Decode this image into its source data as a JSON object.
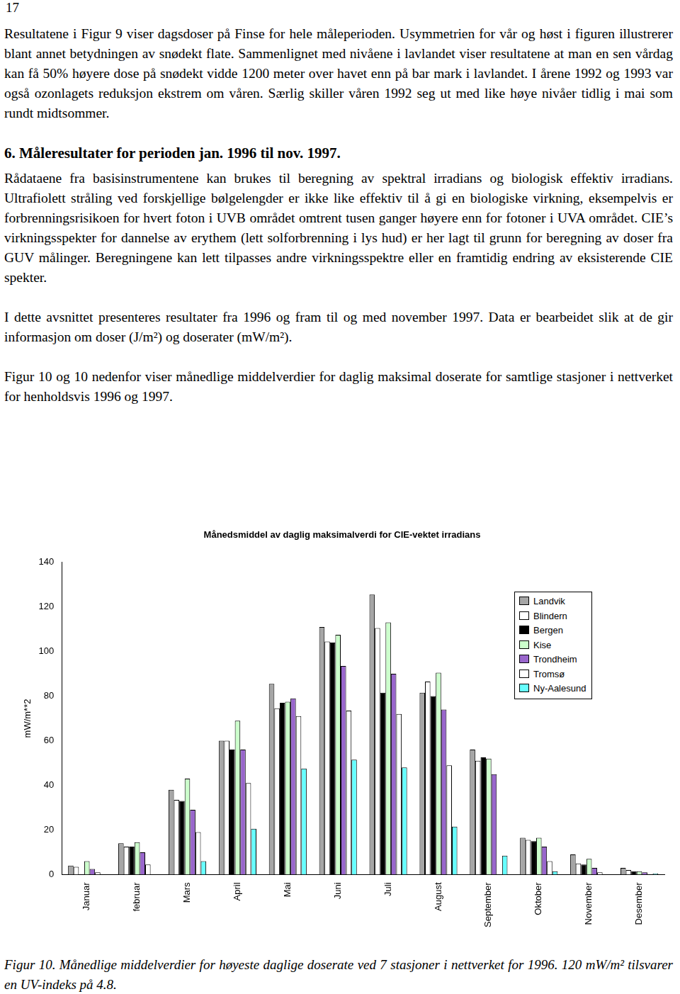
{
  "page_number": "17",
  "paragraphs_before": [
    "Resultatene i Figur 9 viser dagsdoser på Finse for hele måleperioden. Usymmetrien for vår og høst i figuren illustrerer blant annet betydningen av snødekt flate. Sammenlignet med nivåene i lavlandet viser resultatene at man en sen vårdag kan få 50% høyere dose på snødekt vidde 1200 meter over havet enn på bar mark i lavlandet. I årene 1992 og 1993 var også ozonlagets reduksjon ekstrem om våren. Særlig skiller våren 1992 seg ut med like høye nivåer tidlig i mai som rundt midtsommer."
  ],
  "heading": "6. Måleresultater for perioden jan. 1996 til nov. 1997.",
  "paragraphs_after": [
    "Rådataene fra basisinstrumentene kan brukes til beregning av spektral irradians og biologisk effektiv irradians. Ultrafiolett stråling ved forskjellige bølgelengder er ikke like effektiv til å gi en biologiske virkning, eksempelvis er forbrenningsrisikoen for hvert foton i UVB området omtrent tusen ganger høyere enn for fotoner i  UVA området. CIE’s virkningsspekter for dannelse av erythem (lett solforbrenning i lys hud) er her lagt til grunn for beregning av doser fra GUV målinger. Beregningene kan lett tilpasses andre virkningsspektre eller en framtidig endring av eksisterende CIE spekter.",
    "I dette avsnittet presenteres resultater fra 1996 og fram til og med november 1997. Data er bearbeidet slik at de gir informasjon om doser (J/m²) og doserater (mW/m²).",
    "Figur 10 og 10 nedenfor viser månedlige middelverdier for daglig maksimal doserate for samtlige  stasjoner i nettverket for henholdsvis 1996 og 1997."
  ],
  "chart_data": {
    "type": "bar",
    "title": "Månedsmiddel av daglig maksimalverdi for CIE-vektet irradians",
    "y_label": "mW/m**2",
    "categories": [
      "Januar",
      "februar",
      "Mars",
      "April",
      "Mai",
      "Juni",
      "Juli",
      "August",
      "September",
      "Oktober",
      "November",
      "Desember"
    ],
    "series": [
      {
        "name": "Landvik",
        "color": "#a6a6a6",
        "values": [
          4,
          14,
          38,
          60,
          85.5,
          111,
          125.5,
          81.5,
          56,
          16.5,
          9,
          3
        ]
      },
      {
        "name": "Blindern",
        "color": "#ffffff",
        "values": [
          3.5,
          12.5,
          33.5,
          60,
          74.5,
          104.5,
          110.5,
          86.5,
          51,
          15.5,
          5,
          2
        ]
      },
      {
        "name": "Bergen",
        "color": "#000000",
        "values": [
          null,
          12.5,
          33,
          56,
          77,
          104,
          81.5,
          80,
          52.5,
          15,
          4.5,
          1.5
        ]
      },
      {
        "name": "Kise",
        "color": "#ccffcc",
        "values": [
          6,
          14.5,
          43,
          69,
          77.5,
          107.5,
          113,
          90.5,
          52,
          16.5,
          7,
          1.5
        ]
      },
      {
        "name": "Trondheim",
        "color": "#9966cc",
        "values": [
          2.5,
          10,
          29,
          56,
          79,
          93.5,
          90,
          74,
          45,
          12.5,
          3,
          1
        ]
      },
      {
        "name": "Tromsø",
        "color": "#ffffff",
        "values": [
          1,
          4.5,
          19,
          41,
          71,
          73.5,
          72,
          49,
          null,
          6,
          1,
          null
        ]
      },
      {
        "name": "Ny-Aalesund",
        "color": "#66ffff",
        "values": [
          0,
          0,
          6,
          20.5,
          47.5,
          51.5,
          48,
          21.5,
          8.5,
          1.5,
          0,
          0.5
        ]
      }
    ],
    "ylim": [
      0,
      140
    ],
    "yticks": [
      0,
      20,
      40,
      60,
      80,
      100,
      120,
      140
    ],
    "grid": false,
    "legend": "upper right"
  },
  "caption": "Figur 10.  Månedlige middelverdier for høyeste daglige doserate ved 7 stasjoner i nettverket for 1996. 120 mW/m² tilsvarer en UV-indeks på 4.8."
}
